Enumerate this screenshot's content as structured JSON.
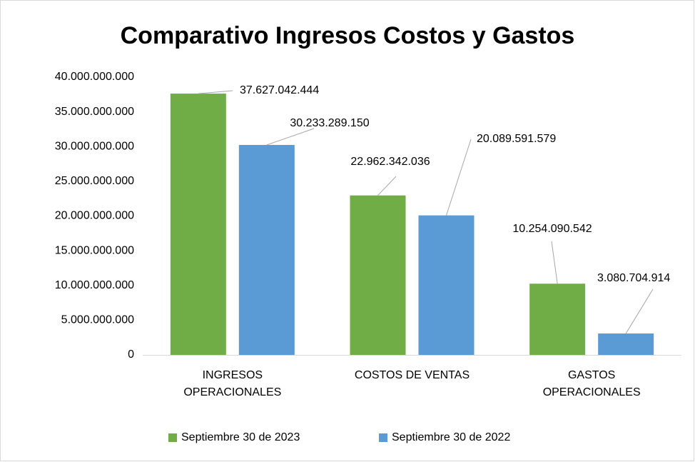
{
  "chart_data": {
    "type": "bar",
    "title": "Comparativo Ingresos Costos y Gastos",
    "categories": [
      "INGRESOS\nOPERACIONALES",
      "COSTOS DE VENTAS",
      "GASTOS\nOPERACIONALES"
    ],
    "series": [
      {
        "name": "Septiembre 30 de 2023",
        "color": "#70ad47",
        "values": [
          37627042444,
          22962342036,
          10254090542
        ],
        "value_labels": [
          "37.627.042.444",
          "22.962.342.036",
          "10.254.090.542"
        ]
      },
      {
        "name": "Septiembre 30 de 2022",
        "color": "#5b9bd5",
        "values": [
          30233289150,
          20089591579,
          3080704914
        ],
        "value_labels": [
          "30.233.289.150",
          "20.089.591.579",
          "3.080.704.914"
        ]
      }
    ],
    "ylim": [
      0,
      40000000000
    ],
    "yticks": [
      0,
      {
        "value": 5000000000,
        "label": "5.000.000.000"
      },
      {
        "value": 10000000000,
        "label": "10.000.000.000"
      },
      {
        "value": 15000000000,
        "label": "15.000.000.000"
      },
      {
        "value": 20000000000,
        "label": "20.000.000.000"
      },
      {
        "value": 25000000000,
        "label": "25.000.000.000"
      },
      {
        "value": 30000000000,
        "label": "30.000.000.000"
      },
      {
        "value": 35000000000,
        "label": "35.000.000.000"
      },
      {
        "value": 40000000000,
        "label": "40.000.000.000"
      }
    ],
    "grid": false,
    "legend": "bottom"
  }
}
